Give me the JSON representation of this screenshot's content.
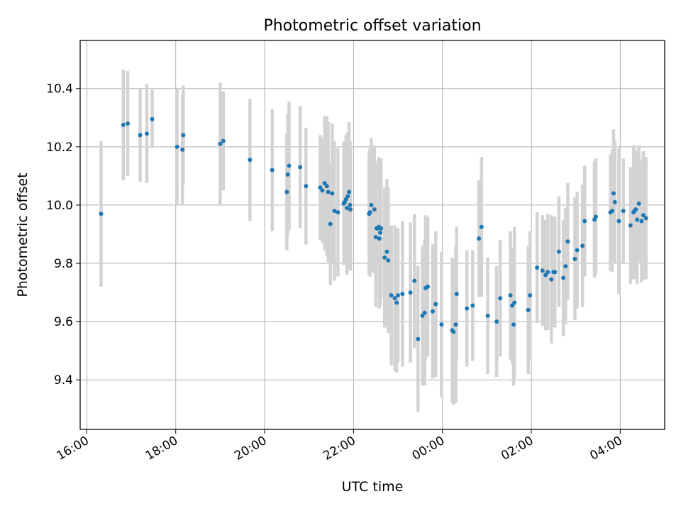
{
  "chart_data": {
    "type": "scatter",
    "title": "Photometric offset variation",
    "xlabel": "UTC time",
    "ylabel": "Photometric offset",
    "grid": true,
    "legend": "none",
    "x_unit": "hours since 16:00 UTC",
    "xlim": [
      15.85,
      29.0
    ],
    "ylim": [
      9.23,
      10.565
    ],
    "x_ticks": [
      {
        "value": 16,
        "label": "16:00"
      },
      {
        "value": 18,
        "label": "18:00"
      },
      {
        "value": 20,
        "label": "20:00"
      },
      {
        "value": 22,
        "label": "22:00"
      },
      {
        "value": 24,
        "label": "00:00"
      },
      {
        "value": 26,
        "label": "02:00"
      },
      {
        "value": 28,
        "label": "04:00"
      }
    ],
    "y_ticks": [
      {
        "value": 9.4,
        "label": "9.4"
      },
      {
        "value": 9.6,
        "label": "9.6"
      },
      {
        "value": 9.8,
        "label": "9.8"
      },
      {
        "value": 10.0,
        "label": "10.0"
      },
      {
        "value": 10.2,
        "label": "10.2"
      },
      {
        "value": 10.4,
        "label": "10.4"
      }
    ],
    "point_color": "#1f77b4",
    "errorbar_color": "#d3d3d3",
    "points": [
      [
        16.32,
        9.97,
        0.25
      ],
      [
        16.82,
        10.275,
        0.19
      ],
      [
        16.92,
        10.28,
        0.18
      ],
      [
        17.2,
        10.24,
        0.16
      ],
      [
        17.35,
        10.245,
        0.17
      ],
      [
        17.47,
        10.295,
        0.1
      ],
      [
        18.03,
        10.2,
        0.2
      ],
      [
        18.15,
        10.19,
        0.19
      ],
      [
        18.17,
        10.24,
        0.17
      ],
      [
        19.0,
        10.21,
        0.21
      ],
      [
        19.07,
        10.22,
        0.17
      ],
      [
        19.67,
        10.155,
        0.21
      ],
      [
        20.17,
        10.12,
        0.21
      ],
      [
        20.5,
        10.045,
        0.2
      ],
      [
        20.52,
        10.105,
        0.21
      ],
      [
        20.55,
        10.135,
        0.22
      ],
      [
        20.8,
        10.13,
        0.21
      ],
      [
        20.93,
        10.065,
        0.2
      ],
      [
        21.25,
        10.06,
        0.18
      ],
      [
        21.3,
        10.05,
        0.18
      ],
      [
        21.35,
        10.075,
        0.23
      ],
      [
        21.4,
        10.065,
        0.24
      ],
      [
        21.43,
        10.045,
        0.24
      ],
      [
        21.48,
        9.935,
        0.21
      ],
      [
        21.52,
        10.04,
        0.24
      ],
      [
        21.57,
        9.98,
        0.24
      ],
      [
        21.65,
        9.975,
        0.22
      ],
      [
        21.78,
        10.005,
        0.21
      ],
      [
        21.8,
        10.01,
        0.21
      ],
      [
        21.83,
        10.02,
        0.22
      ],
      [
        21.85,
        9.99,
        0.23
      ],
      [
        21.87,
        10.03,
        0.22
      ],
      [
        21.9,
        10.045,
        0.24
      ],
      [
        21.92,
        10.0,
        0.22
      ],
      [
        21.93,
        9.985,
        0.21
      ],
      [
        22.35,
        9.97,
        0.21
      ],
      [
        22.37,
        9.975,
        0.22
      ],
      [
        22.4,
        10.0,
        0.23
      ],
      [
        22.47,
        9.985,
        0.22
      ],
      [
        22.5,
        9.89,
        0.24
      ],
      [
        22.52,
        9.92,
        0.22
      ],
      [
        22.55,
        9.92,
        0.23
      ],
      [
        22.57,
        9.925,
        0.24
      ],
      [
        22.58,
        9.885,
        0.24
      ],
      [
        22.6,
        9.905,
        0.25
      ],
      [
        22.62,
        9.92,
        0.24
      ],
      [
        22.7,
        9.82,
        0.24
      ],
      [
        22.75,
        9.84,
        0.25
      ],
      [
        22.78,
        9.81,
        0.25
      ],
      [
        22.85,
        9.69,
        0.24
      ],
      [
        22.93,
        9.68,
        0.25
      ],
      [
        22.97,
        9.665,
        0.24
      ],
      [
        23.0,
        9.69,
        0.23
      ],
      [
        23.1,
        9.695,
        0.25
      ],
      [
        23.28,
        9.7,
        0.24
      ],
      [
        23.37,
        9.74,
        0.23
      ],
      [
        23.45,
        9.54,
        0.25
      ],
      [
        23.55,
        9.62,
        0.24
      ],
      [
        23.6,
        9.63,
        0.25
      ],
      [
        23.62,
        9.715,
        0.25
      ],
      [
        23.67,
        9.72,
        0.24
      ],
      [
        23.78,
        9.635,
        0.23
      ],
      [
        23.85,
        9.66,
        0.25
      ],
      [
        23.98,
        9.59,
        0.25
      ],
      [
        24.22,
        9.57,
        0.25
      ],
      [
        24.25,
        9.565,
        0.25
      ],
      [
        24.3,
        9.59,
        0.27
      ],
      [
        24.32,
        9.695,
        0.23
      ],
      [
        24.55,
        9.645,
        0.2
      ],
      [
        24.68,
        9.655,
        0.19
      ],
      [
        24.82,
        9.885,
        0.2
      ],
      [
        24.88,
        9.925,
        0.24
      ],
      [
        25.02,
        9.62,
        0.2
      ],
      [
        25.22,
        9.6,
        0.19
      ],
      [
        25.3,
        9.68,
        0.2
      ],
      [
        25.53,
        9.69,
        0.22
      ],
      [
        25.57,
        9.655,
        0.2
      ],
      [
        25.6,
        9.59,
        0.21
      ],
      [
        25.62,
        9.665,
        0.26
      ],
      [
        25.93,
        9.64,
        0.22
      ],
      [
        25.97,
        9.69,
        0.22
      ],
      [
        26.13,
        9.785,
        0.19
      ],
      [
        26.25,
        9.775,
        0.19
      ],
      [
        26.32,
        9.76,
        0.19
      ],
      [
        26.37,
        9.77,
        0.2
      ],
      [
        26.45,
        9.745,
        0.22
      ],
      [
        26.5,
        9.77,
        0.19
      ],
      [
        26.53,
        9.77,
        0.19
      ],
      [
        26.62,
        9.84,
        0.19
      ],
      [
        26.72,
        9.75,
        0.2
      ],
      [
        26.77,
        9.79,
        0.2
      ],
      [
        26.82,
        9.875,
        0.2
      ],
      [
        26.98,
        9.815,
        0.21
      ],
      [
        27.03,
        9.845,
        0.2
      ],
      [
        27.15,
        9.86,
        0.21
      ],
      [
        27.2,
        9.945,
        0.19
      ],
      [
        27.42,
        9.95,
        0.2
      ],
      [
        27.45,
        9.96,
        0.2
      ],
      [
        27.78,
        9.975,
        0.2
      ],
      [
        27.82,
        9.98,
        0.21
      ],
      [
        27.85,
        10.04,
        0.22
      ],
      [
        27.88,
        10.01,
        0.21
      ],
      [
        27.97,
        9.945,
        0.25
      ],
      [
        28.07,
        9.98,
        0.18
      ],
      [
        28.23,
        9.93,
        0.2
      ],
      [
        28.3,
        9.975,
        0.23
      ],
      [
        28.32,
        9.98,
        0.22
      ],
      [
        28.35,
        9.985,
        0.2
      ],
      [
        28.38,
        9.95,
        0.22
      ],
      [
        28.42,
        10.005,
        0.2
      ],
      [
        28.48,
        9.945,
        0.21
      ],
      [
        28.52,
        9.965,
        0.22
      ],
      [
        28.58,
        9.955,
        0.21
      ]
    ]
  }
}
